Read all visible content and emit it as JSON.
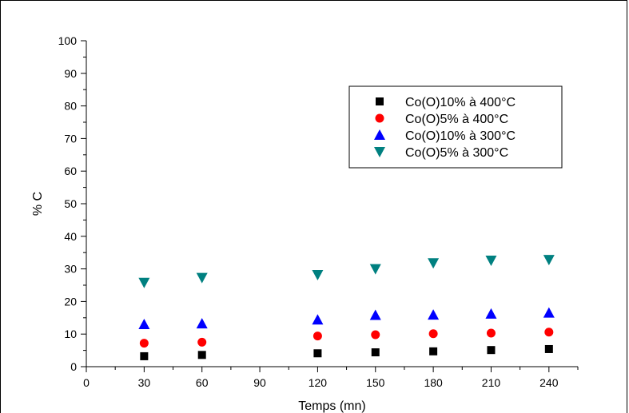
{
  "chart_data": {
    "type": "scatter",
    "xlabel": "Temps (mn)",
    "ylabel": "% C",
    "xlim": [
      0,
      255
    ],
    "ylim": [
      0,
      100
    ],
    "x_ticks": [
      0,
      30,
      60,
      90,
      120,
      150,
      180,
      210,
      240
    ],
    "y_ticks": [
      0,
      10,
      20,
      30,
      40,
      50,
      60,
      70,
      80,
      90,
      100
    ],
    "grid": false,
    "legend_position": "upper-right",
    "series": [
      {
        "name": "Co(O)10% à 400°C",
        "marker": "square",
        "color": "#000000",
        "x": [
          30,
          60,
          120,
          150,
          180,
          210,
          240
        ],
        "y": [
          3.2,
          3.6,
          4.1,
          4.4,
          4.7,
          5.1,
          5.4
        ]
      },
      {
        "name": "Co(O)5% à 400°C",
        "marker": "circle",
        "color": "#ff0000",
        "x": [
          30,
          60,
          120,
          150,
          180,
          210,
          240
        ],
        "y": [
          7.2,
          7.5,
          9.4,
          9.8,
          10.1,
          10.3,
          10.6
        ]
      },
      {
        "name": "Co(O)10% à 300°C",
        "marker": "triangle-up",
        "color": "#0000ff",
        "x": [
          30,
          60,
          120,
          150,
          180,
          210,
          240
        ],
        "y": [
          13.0,
          13.2,
          14.4,
          15.8,
          15.9,
          16.2,
          16.5
        ]
      },
      {
        "name": "Co(O)5% à 300°C",
        "marker": "triangle-down",
        "color": "#008080",
        "x": [
          30,
          60,
          120,
          150,
          180,
          210,
          240
        ],
        "y": [
          25.8,
          27.3,
          28.2,
          30.0,
          31.8,
          32.6,
          32.8
        ]
      }
    ]
  }
}
